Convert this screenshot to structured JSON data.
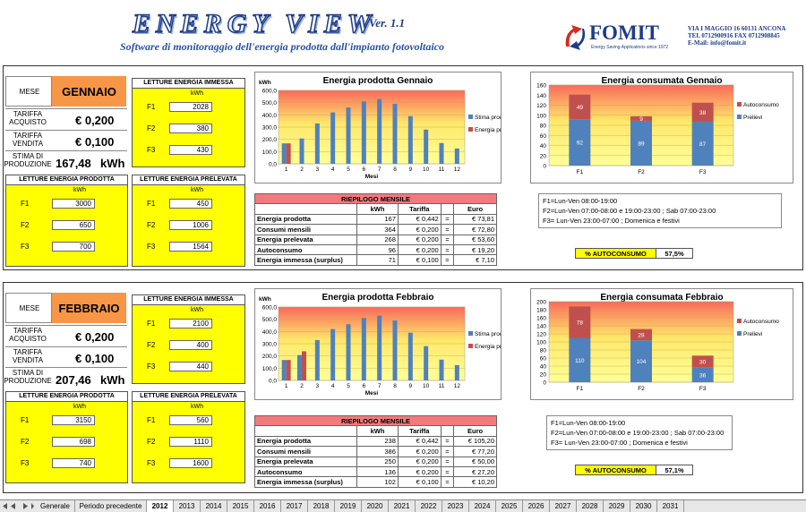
{
  "header": {
    "title": "ENERGY VIEW",
    "version": "Ver. 1.1",
    "subtitle": "Software di monitoraggio dell'energia prodotta dall'impianto fotovoltaico",
    "company": "FOMIT",
    "company_tag": "Energy Saving Applications since 1972",
    "address": "VIA I MAGGIO 16 60131 ANCONA",
    "phone": "TEL 0712900916 FAX 0712908845",
    "email": "E-Mail: info@fomit.it"
  },
  "labels": {
    "mese": "MESE",
    "tariffa_acquisto": "TARIFFA ACQUISTO",
    "tariffa_vendita": "TARIFFA VENDITA",
    "stima_produzione": "STIMA DI PRODUZIONE",
    "letture_immessa": "LETTURE ENERGIA IMMESSA",
    "letture_prodotta": "LETTURE ENERGIA PRODOTTA",
    "letture_prelevata": "LETTURE ENERGIA PRELEVATA",
    "kwh": "kWh",
    "f1": "F1",
    "f2": "F2",
    "f3": "F3",
    "riepilogo": "RIEPILOGO MENSILE",
    "col_kwh": "kWh",
    "col_tariffa": "Tariffa",
    "col_euro": "Euro",
    "autoconsumo_pct": "% AUTOCONSUMO",
    "mesi": "Mesi",
    "legend_stima": "Stima produzione",
    "legend_prodotta": "Energia prodotta",
    "legend_auto": "Autoconsumo",
    "legend_prelievi": "Prelievi",
    "fasce": [
      "F1=Lun-Ven 08:00-19:00",
      "F2=Lun-Ven 07:00-08:00 e 19:00-23:00 ; Sab 07:00-23:00",
      "F3= Lun-Ven 23:00-07:00 ; Domenica e festivi"
    ]
  },
  "months": [
    {
      "name": "GENNAIO",
      "tariffa_acquisto": "€ 0,200",
      "tariffa_vendita": "€ 0,100",
      "stima": "167,48",
      "immessa": [
        "2028",
        "380",
        "430"
      ],
      "prodotta": [
        "3000",
        "650",
        "700"
      ],
      "prelevata": [
        "450",
        "1006",
        "1564"
      ],
      "chart1_title": "Energia prodotta Gennaio",
      "chart2_title": "Energia consumata Gennaio",
      "rows": [
        {
          "label": "Energia prodotta",
          "kwh": "167",
          "tariffa": "€ 0,442",
          "eq": "=",
          "euro": "€ 73,81"
        },
        {
          "label": "Consumi mensili",
          "kwh": "364",
          "tariffa": "€ 0,200",
          "eq": "=",
          "euro": "€ 72,80"
        },
        {
          "label": "Energia prelevata",
          "kwh": "268",
          "tariffa": "€ 0,200",
          "eq": "=",
          "euro": "€ 53,60"
        },
        {
          "label": "Autoconsumo",
          "kwh": "96",
          "tariffa": "€ 0,200",
          "eq": "=",
          "euro": "€ 19,20"
        },
        {
          "label": "Energia immessa (surplus)",
          "kwh": "71",
          "tariffa": "€ 0,100",
          "eq": "=",
          "euro": "€ 7,10"
        }
      ],
      "pct": "57,5%"
    },
    {
      "name": "FEBBRAIO",
      "tariffa_acquisto": "€ 0,200",
      "tariffa_vendita": "€ 0,100",
      "stima": "207,46",
      "immessa": [
        "2100",
        "400",
        "440"
      ],
      "prodotta": [
        "3150",
        "698",
        "740"
      ],
      "prelevata": [
        "560",
        "1110",
        "1600"
      ],
      "chart1_title": "Energia prodotta Febbraio",
      "chart2_title": "Energia consumata Febbraio",
      "rows": [
        {
          "label": "Energia prodotta",
          "kwh": "238",
          "tariffa": "€ 0,442",
          "eq": "=",
          "euro": "€ 105,20"
        },
        {
          "label": "Consumi mensili",
          "kwh": "386",
          "tariffa": "€ 0,200",
          "eq": "=",
          "euro": "€ 77,20"
        },
        {
          "label": "Energia prelevata",
          "kwh": "250",
          "tariffa": "€ 0,200",
          "eq": "=",
          "euro": "€ 50,00"
        },
        {
          "label": "Autoconsumo",
          "kwh": "136",
          "tariffa": "€ 0,200",
          "eq": "=",
          "euro": "€ 27,20"
        },
        {
          "label": "Energia immessa (surplus)",
          "kwh": "102",
          "tariffa": "€ 0,100",
          "eq": "=",
          "euro": "€ 10,20"
        }
      ],
      "pct": "57,1%"
    }
  ],
  "chart_data": [
    {
      "type": "bar",
      "title": "Energia prodotta Gennaio",
      "xlabel": "Mesi",
      "ylabel": "kWh",
      "ylim": [
        0,
        600
      ],
      "yticks": [
        "0,0",
        "100,0",
        "200,0",
        "300,0",
        "400,0",
        "500,0",
        "600,0"
      ],
      "categories": [
        "1",
        "2",
        "3",
        "4",
        "5",
        "6",
        "7",
        "8",
        "9",
        "10",
        "11",
        "12"
      ],
      "series": [
        {
          "name": "Stima produzione",
          "color": "#4f81bd",
          "values": [
            167,
            207,
            330,
            420,
            460,
            510,
            530,
            490,
            390,
            280,
            170,
            125
          ]
        },
        {
          "name": "Energia prodotta",
          "color": "#c0504d",
          "values": [
            167,
            null,
            null,
            null,
            null,
            null,
            null,
            null,
            null,
            null,
            null,
            null
          ]
        }
      ]
    },
    {
      "type": "bar",
      "title": "Energia consumata Gennaio",
      "ylim": [
        0,
        160
      ],
      "yticks": [
        "0",
        "20",
        "40",
        "60",
        "80",
        "100",
        "120",
        "140",
        "160"
      ],
      "categories": [
        "F1",
        "F2",
        "F3"
      ],
      "stacked": true,
      "series": [
        {
          "name": "Prelievi",
          "color": "#4f81bd",
          "values": [
            92,
            89,
            87
          ]
        },
        {
          "name": "Autoconsumo",
          "color": "#c0504d",
          "values": [
            49,
            9,
            38
          ]
        }
      ]
    },
    {
      "type": "bar",
      "title": "Energia prodotta Febbraio",
      "xlabel": "Mesi",
      "ylabel": "kWh",
      "ylim": [
        0,
        600
      ],
      "yticks": [
        "0,0",
        "100,0",
        "200,0",
        "300,0",
        "400,0",
        "500,0",
        "600,0"
      ],
      "categories": [
        "1",
        "2",
        "3",
        "4",
        "5",
        "6",
        "7",
        "8",
        "9",
        "10",
        "11",
        "12"
      ],
      "series": [
        {
          "name": "Stima produzione",
          "color": "#4f81bd",
          "values": [
            167,
            207,
            330,
            420,
            460,
            510,
            530,
            490,
            390,
            280,
            170,
            125
          ]
        },
        {
          "name": "Energia prodotta",
          "color": "#c0504d",
          "values": [
            167,
            238,
            null,
            null,
            null,
            null,
            null,
            null,
            null,
            null,
            null,
            null
          ]
        }
      ]
    },
    {
      "type": "bar",
      "title": "Energia consumata Febbraio",
      "ylim": [
        0,
        200
      ],
      "yticks": [
        "0",
        "20",
        "40",
        "60",
        "80",
        "100",
        "120",
        "140",
        "160",
        "180",
        "200"
      ],
      "categories": [
        "F1",
        "F2",
        "F3"
      ],
      "stacked": true,
      "series": [
        {
          "name": "Prelievi",
          "color": "#4f81bd",
          "values": [
            110,
            104,
            36
          ]
        },
        {
          "name": "Autoconsumo",
          "color": "#c0504d",
          "values": [
            78,
            28,
            30
          ]
        }
      ]
    }
  ],
  "tabs": [
    "Generale",
    "Periodo precedente",
    "2012",
    "2013",
    "2014",
    "2015",
    "2016",
    "2017",
    "2018",
    "2019",
    "2020",
    "2021",
    "2022",
    "2023",
    "2024",
    "2025",
    "2026",
    "2027",
    "2028",
    "2029",
    "2030",
    "2031"
  ],
  "active_tab": "2012"
}
